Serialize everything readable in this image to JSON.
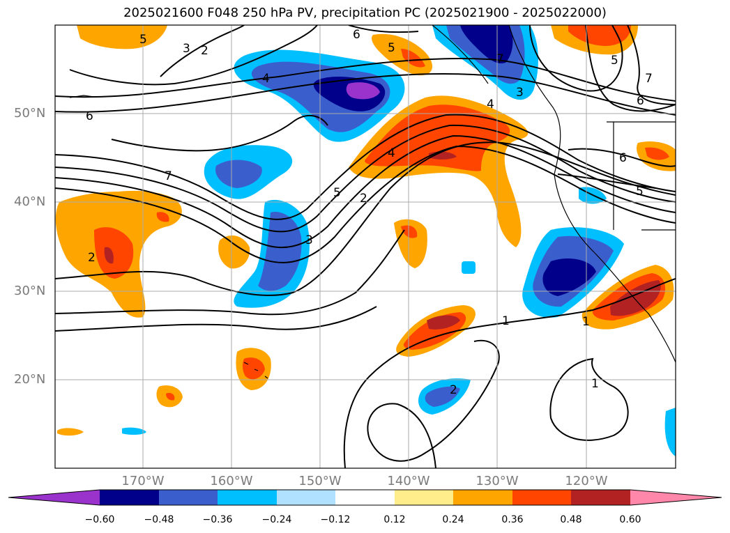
{
  "title": "2025021600 F048 250 hPa PV, precipitation PC (2025021900 - 2025022000)",
  "map": {
    "lat_ticks": [
      {
        "label": "50°N",
        "value": 50
      },
      {
        "label": "40°N",
        "value": 40
      },
      {
        "label": "30°N",
        "value": 30
      },
      {
        "label": "20°N",
        "value": 20
      }
    ],
    "lon_ticks": [
      {
        "label": "170°W",
        "value": -170
      },
      {
        "label": "160°W",
        "value": -160
      },
      {
        "label": "150°W",
        "value": -150
      },
      {
        "label": "140°W",
        "value": -140
      },
      {
        "label": "130°W",
        "value": -130
      },
      {
        "label": "120°W",
        "value": -120
      }
    ],
    "contour_labels": [
      "1",
      "2",
      "3",
      "4",
      "5",
      "6",
      "7"
    ],
    "grid": true
  },
  "colorbar": {
    "labels": [
      "−0.60",
      "−0.48",
      "−0.36",
      "−0.24",
      "−0.12",
      "0.12",
      "0.24",
      "0.36",
      "0.48",
      "0.60"
    ],
    "colors": [
      "#9933cc",
      "#00008b",
      "#3a5fcd",
      "#00bfff",
      "#b0e2ff",
      "#ffffff",
      "#ffec8b",
      "#ffa500",
      "#ff4500",
      "#b22222",
      "#ff88aa"
    ]
  },
  "palette": {
    "purple": "#9933cc",
    "navy": "#00008b",
    "blue": "#3a5fcd",
    "sky": "#00bfff",
    "lightblue": "#b0e2ff",
    "lightyellow": "#ffec8b",
    "orange": "#ffa500",
    "redorange": "#ff4500",
    "firebrick": "#b22222"
  }
}
